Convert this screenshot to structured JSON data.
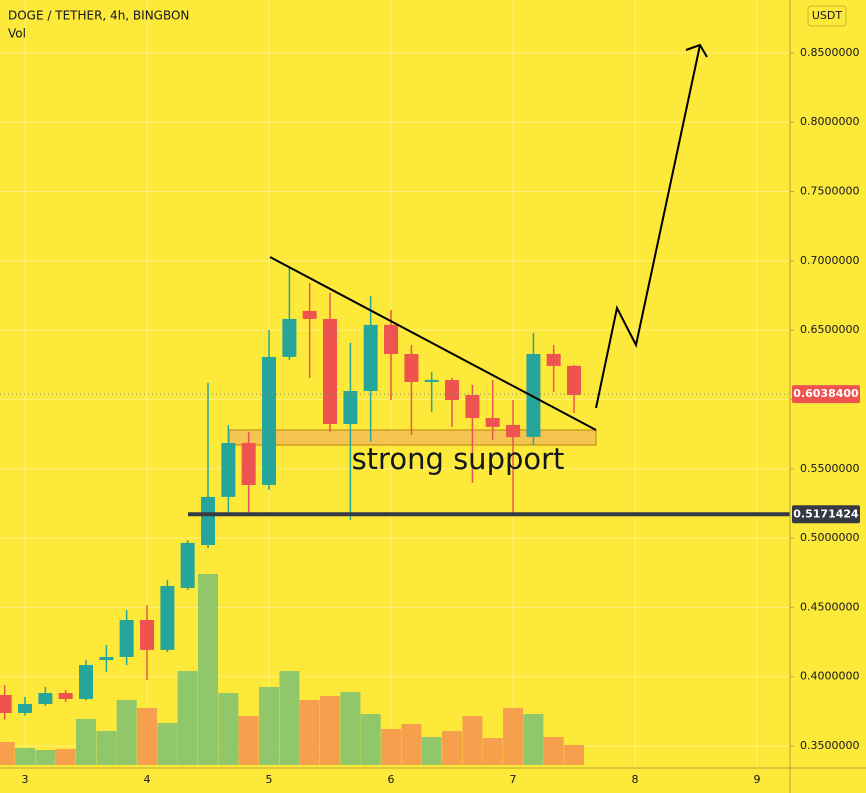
{
  "chart_data": {
    "type": "candlestick",
    "title": "DOGE / TETHER, 4h, BINGBON",
    "volume_label": "Vol",
    "currency": "USDT",
    "annotation": "strong support",
    "x": [
      2.833,
      3,
      3.167,
      3.333,
      3.5,
      3.667,
      3.833,
      4,
      4.167,
      4.333,
      4.5,
      4.667,
      4.833,
      5,
      5.167,
      5.333,
      5.5,
      5.667,
      5.833,
      6,
      6.167,
      6.333,
      6.5,
      6.667,
      6.833,
      7,
      7.167,
      7.333,
      7.5
    ],
    "open": [
      0.3868,
      0.3738,
      0.3803,
      0.3882,
      0.3839,
      0.412,
      0.4142,
      0.4409,
      0.4193,
      0.464,
      0.495,
      0.5297,
      0.5686,
      0.5383,
      0.6307,
      0.6639,
      0.6581,
      0.5823,
      0.6061,
      0.6538,
      0.6328,
      0.6126,
      0.614,
      0.6032,
      0.5866,
      0.5816,
      0.573,
      0.6328,
      0.6242
    ],
    "high": [
      0.394,
      0.3854,
      0.3926,
      0.3904,
      0.412,
      0.4229,
      0.4481,
      0.4517,
      0.4698,
      0.4986,
      0.6119,
      0.5816,
      0.5766,
      0.6501,
      0.6956,
      0.684,
      0.6768,
      0.6408,
      0.6747,
      0.6646,
      0.6393,
      0.6198,
      0.6155,
      0.6105,
      0.6141,
      0.5996,
      0.648,
      0.6393,
      0.6249
    ],
    "low": [
      0.369,
      0.3718,
      0.3789,
      0.3817,
      0.383,
      0.4034,
      0.4084,
      0.3976,
      0.4178,
      0.4626,
      0.4928,
      0.5167,
      0.5167,
      0.5347,
      0.6285,
      0.6155,
      0.5766,
      0.5131,
      0.5694,
      0.5996,
      0.5744,
      0.591,
      0.5802,
      0.5398,
      0.5708,
      0.5167,
      0.5672,
      0.6054,
      0.5903
    ],
    "close": [
      0.3738,
      0.3803,
      0.3882,
      0.3839,
      0.4084,
      0.4142,
      0.4409,
      0.4193,
      0.4654,
      0.4965,
      0.5297,
      0.5686,
      0.5383,
      0.6307,
      0.6581,
      0.6581,
      0.5823,
      0.6061,
      0.6538,
      0.6328,
      0.6126,
      0.6141,
      0.5996,
      0.5866,
      0.5802,
      0.5729,
      0.6328,
      0.6242,
      0.6032
    ],
    "volume": [
      23,
      17,
      15,
      16,
      46,
      34,
      65,
      57,
      42,
      94,
      191,
      72,
      49,
      78,
      94,
      65,
      69,
      73,
      51,
      36,
      41,
      28,
      34,
      49,
      27,
      57,
      51,
      28,
      20
    ],
    "volume_lim": [
      0,
      400
    ],
    "up_color": "#26a69a",
    "down_color": "#ef5350",
    "volume_up_color": "#8fc76a",
    "volume_down_color": "#f6a04d",
    "xlim": [
      2.795,
      9.27
    ],
    "xticks": [
      3,
      4,
      5,
      6,
      7,
      8,
      9
    ],
    "ylim": [
      0.3341,
      0.8882
    ],
    "yticks": [
      {
        "value": 0.35,
        "label": "0.3500000"
      },
      {
        "value": 0.4,
        "label": "0.4000000"
      },
      {
        "value": 0.45,
        "label": "0.4500000"
      },
      {
        "value": 0.5,
        "label": "0.5000000"
      },
      {
        "value": 0.55,
        "label": "0.5500000"
      },
      {
        "value": 0.6,
        "label": "0.6000000"
      },
      {
        "value": 0.65,
        "label": "0.6500000"
      },
      {
        "value": 0.7,
        "label": "0.7000000"
      },
      {
        "value": 0.75,
        "label": "0.7500000"
      },
      {
        "value": 0.8,
        "label": "0.8000000"
      },
      {
        "value": 0.85,
        "label": "0.8500000"
      }
    ],
    "grid": true,
    "price_lines": [
      {
        "value": 0.60384,
        "label": "0.6038400",
        "color": "#ef5350"
      },
      {
        "value": 0.5171424,
        "label": "0.5171424",
        "color": "#363a45"
      }
    ]
  }
}
